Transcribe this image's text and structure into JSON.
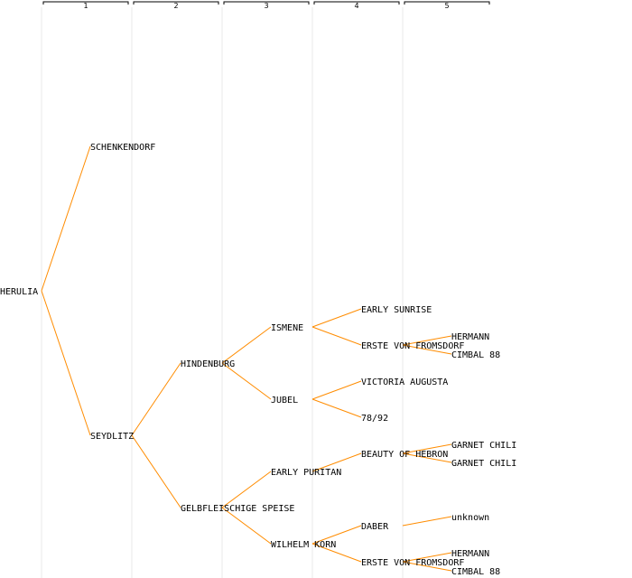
{
  "generations": [
    {
      "label": "1"
    },
    {
      "label": "2"
    },
    {
      "label": "3"
    },
    {
      "label": "4"
    },
    {
      "label": "5"
    }
  ],
  "colors": {
    "edge": "#ff8c00",
    "column_guide": "#e8e8e8",
    "bracket": "#000000",
    "text": "#000000"
  },
  "nodes": [
    {
      "id": "herulia",
      "label": "HERULIA",
      "gen": 0
    },
    {
      "id": "schenkendorf",
      "label": "SCHENKENDORF",
      "gen": 1,
      "parent": "herulia"
    },
    {
      "id": "seydlitz",
      "label": "SEYDLITZ",
      "gen": 1,
      "parent": "herulia"
    },
    {
      "id": "hindenburg",
      "label": "HINDENBURG",
      "gen": 2,
      "parent": "seydlitz"
    },
    {
      "id": "gelbfleischige",
      "label": "GELBFLEISCHIGE SPEISE",
      "gen": 2,
      "parent": "seydlitz"
    },
    {
      "id": "ismene",
      "label": "ISMENE",
      "gen": 3,
      "parent": "hindenburg"
    },
    {
      "id": "jubel",
      "label": "JUBEL",
      "gen": 3,
      "parent": "hindenburg"
    },
    {
      "id": "early-puritan",
      "label": "EARLY PURITAN",
      "gen": 3,
      "parent": "gelbfleischige"
    },
    {
      "id": "wilhelm-korn",
      "label": "WILHELM KORN",
      "gen": 3,
      "parent": "gelbfleischige"
    },
    {
      "id": "early-sunrise",
      "label": "EARLY SUNRISE",
      "gen": 4,
      "parent": "ismene"
    },
    {
      "id": "erste-von-fromsdorf-1",
      "label": "ERSTE VON FROMSDORF",
      "gen": 4,
      "parent": "ismene"
    },
    {
      "id": "victoria-augusta",
      "label": "VICTORIA AUGUSTA",
      "gen": 4,
      "parent": "jubel"
    },
    {
      "id": "n78-92",
      "label": "78/92",
      "gen": 4,
      "parent": "jubel"
    },
    {
      "id": "beauty-of-hebron",
      "label": "BEAUTY OF HEBRON",
      "gen": 4,
      "parent": "early-puritan"
    },
    {
      "id": "daber",
      "label": "DABER",
      "gen": 4,
      "parent": "wilhelm-korn"
    },
    {
      "id": "erste-von-fromsdorf-2",
      "label": "ERSTE VON FROMSDORF",
      "gen": 4,
      "parent": "wilhelm-korn"
    },
    {
      "id": "hermann-1",
      "label": "HERMANN",
      "gen": 5,
      "parent": "erste-von-fromsdorf-1"
    },
    {
      "id": "cimbal-88-1",
      "label": "CIMBAL 88",
      "gen": 5,
      "parent": "erste-von-fromsdorf-1"
    },
    {
      "id": "garnet-chili-1",
      "label": "GARNET CHILI",
      "gen": 5,
      "parent": "beauty-of-hebron"
    },
    {
      "id": "garnet-chili-2",
      "label": "GARNET CHILI",
      "gen": 5,
      "parent": "beauty-of-hebron"
    },
    {
      "id": "unknown",
      "label": "unknown",
      "gen": 5,
      "parent": "daber"
    },
    {
      "id": "hermann-2",
      "label": "HERMANN",
      "gen": 5,
      "parent": "erste-von-fromsdorf-2"
    },
    {
      "id": "cimbal-88-2",
      "label": "CIMBAL 88",
      "gen": 5,
      "parent": "erste-von-fromsdorf-2"
    }
  ]
}
